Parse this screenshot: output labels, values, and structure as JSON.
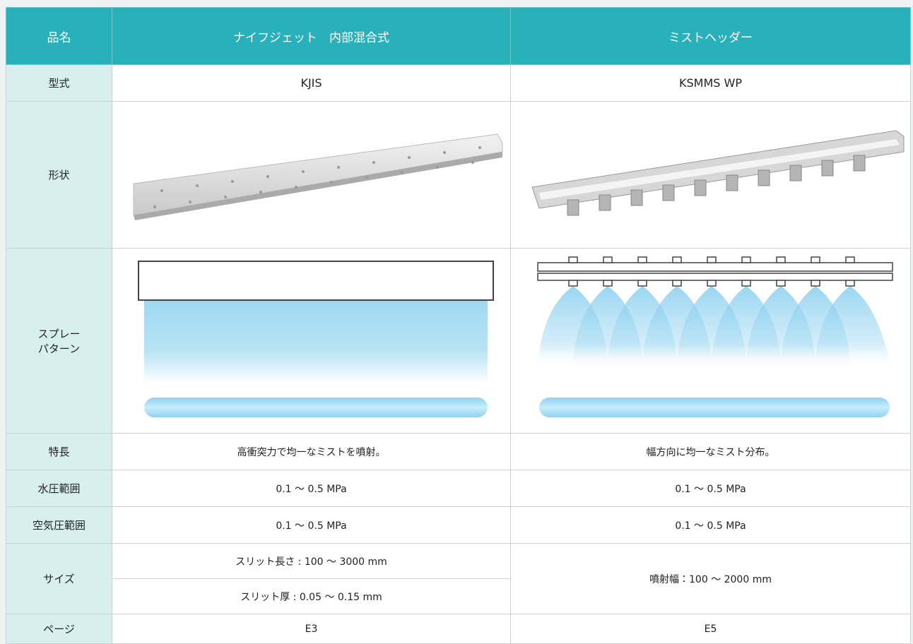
{
  "table": {
    "header": [
      "品名",
      "ナイフジェット　内部混合式",
      "ミストヘッダー"
    ],
    "rows": [
      {
        "label": "型式",
        "kjis": "KJIS",
        "ksmms": "KSMMS WP"
      },
      {
        "label": "形状"
      },
      {
        "label": [
          "スプレー",
          "パターン"
        ]
      },
      {
        "label": "特長",
        "kjis": "高衝突力で均一なミストを噴射。",
        "ksmms": "幅方向に均一なミスト分布。"
      },
      {
        "label": "水圧範囲",
        "kjis": "0.1 〜 0.5 MPa",
        "ksmms": "0.1 〜 0.5 MPa"
      },
      {
        "label": "空気圧範囲",
        "kjis": "0.1 〜 0.5 MPa",
        "ksmms": "0.1 〜 0.5 MPa"
      },
      {
        "label": "サイズ",
        "kjis": [
          "スリット長さ : 100 〜 3000 mm",
          "スリット厚 : 0.05 〜 0.15 mm"
        ],
        "ksmms": "噴射幅：100 〜 2000 mm"
      },
      {
        "label": "ページ",
        "kjis": "E3",
        "ksmms": "E5"
      }
    ]
  }
}
